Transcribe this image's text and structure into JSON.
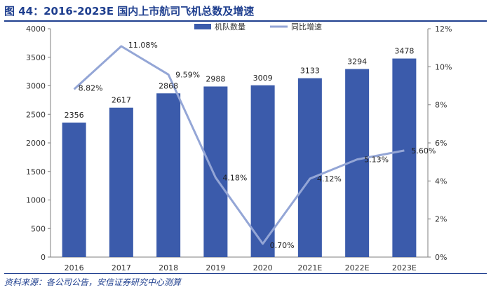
{
  "header": {
    "title": "图 44：2016-2023E 国内上市航司飞机总数及增速"
  },
  "footer": {
    "source": "资料来源：各公司公告，安信证券研究中心测算"
  },
  "chart_data": {
    "type": "bar",
    "categories": [
      "2016",
      "2017",
      "2018",
      "2019",
      "2020",
      "2021E",
      "2022E",
      "2023E"
    ],
    "series": [
      {
        "name": "机队数量",
        "type": "bar",
        "axis": "left",
        "values": [
          2356,
          2617,
          2868,
          2988,
          3009,
          3133,
          3294,
          3478
        ],
        "labels": [
          "2356",
          "2617",
          "2868",
          "2988",
          "3009",
          "3133",
          "3294",
          "3478"
        ]
      },
      {
        "name": "同比增速",
        "type": "line",
        "axis": "right",
        "values": [
          8.82,
          11.08,
          9.59,
          4.18,
          0.7,
          4.12,
          5.13,
          5.6
        ],
        "labels": [
          "8.82%",
          "11.08%",
          "9.59%",
          "4.18%",
          "0.70%",
          "4.12%",
          "5.13%",
          "5.60%"
        ]
      }
    ],
    "y_left": {
      "ylim": [
        0,
        4000
      ],
      "ticks": [
        "0",
        "500",
        "1000",
        "1500",
        "2000",
        "2500",
        "3000",
        "3500",
        "4000"
      ]
    },
    "y_right": {
      "ylim": [
        0,
        12
      ],
      "ticks": [
        "0%",
        "2%",
        "4%",
        "6%",
        "8%",
        "10%",
        "12%"
      ]
    },
    "legend_position": "top-center",
    "grid": false,
    "colors": {
      "bar": "#3b5bab",
      "line": "#94a6d6",
      "title": "#1f3f8f"
    }
  }
}
